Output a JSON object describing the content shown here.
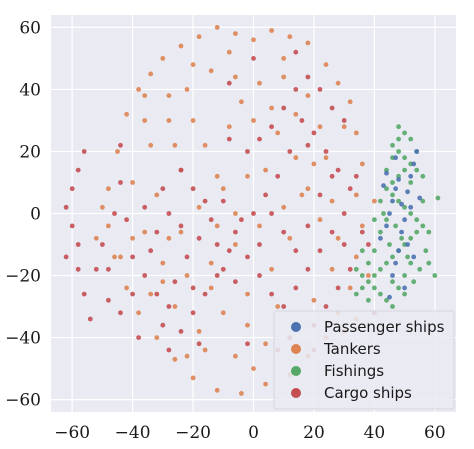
{
  "chart_data": {
    "type": "scatter",
    "title": "",
    "xlabel": "",
    "ylabel": "",
    "xlim": [
      -67,
      67
    ],
    "ylim": [
      -64,
      64
    ],
    "x_ticks": [
      -60,
      -40,
      -20,
      0,
      20,
      40,
      60
    ],
    "y_ticks": [
      -60,
      -40,
      -20,
      0,
      20,
      40,
      60
    ],
    "x_tick_labels": [
      "−60",
      "−40",
      "−20",
      "0",
      "20",
      "40",
      "60"
    ],
    "y_tick_labels": [
      "−60",
      "−40",
      "−20",
      "0",
      "20",
      "40",
      "60"
    ],
    "grid": true,
    "background": "#eaeaf2",
    "legend_position": "bottom-right",
    "series": [
      {
        "name": "Passenger ships",
        "color": "#4c72b0",
        "points": [
          [
            42,
            -8
          ],
          [
            44,
            -4
          ],
          [
            45,
            0
          ],
          [
            46,
            4
          ],
          [
            47,
            8
          ],
          [
            48,
            11
          ],
          [
            49,
            3
          ],
          [
            50,
            -2
          ],
          [
            51,
            7
          ],
          [
            52,
            12
          ],
          [
            53,
            16
          ],
          [
            54,
            20
          ],
          [
            48,
            -12
          ],
          [
            47,
            -16
          ],
          [
            46,
            -20
          ],
          [
            50,
            -24
          ],
          [
            44,
            13
          ],
          [
            51,
            -10
          ],
          [
            55,
            5
          ],
          [
            43,
            9
          ],
          [
            49,
            -6
          ],
          [
            53,
            -14
          ],
          [
            45,
            -27
          ],
          [
            52,
            2
          ],
          [
            47,
            18
          ]
        ]
      },
      {
        "name": "Tankers",
        "color": "#dd8452",
        "points": [
          [
            -45,
            20
          ],
          [
            -42,
            32
          ],
          [
            -38,
            40
          ],
          [
            -34,
            45
          ],
          [
            -30,
            50
          ],
          [
            -24,
            54
          ],
          [
            -18,
            57
          ],
          [
            -12,
            60
          ],
          [
            -6,
            58
          ],
          [
            0,
            56
          ],
          [
            6,
            59
          ],
          [
            12,
            57
          ],
          [
            18,
            55
          ],
          [
            24,
            48
          ],
          [
            28,
            42
          ],
          [
            32,
            36
          ],
          [
            34,
            26
          ],
          [
            36,
            16
          ],
          [
            34,
            6
          ],
          [
            36,
            -4
          ],
          [
            34,
            -14
          ],
          [
            32,
            -24
          ],
          [
            28,
            -32
          ],
          [
            24,
            -40
          ],
          [
            18,
            -46
          ],
          [
            12,
            -52
          ],
          [
            4,
            -55
          ],
          [
            -4,
            -58
          ],
          [
            -12,
            -57
          ],
          [
            -20,
            -53
          ],
          [
            -26,
            -47
          ],
          [
            -32,
            -40
          ],
          [
            -38,
            -32
          ],
          [
            -42,
            -24
          ],
          [
            -46,
            -14
          ],
          [
            -48,
            -4
          ],
          [
            -48,
            8
          ],
          [
            -40,
            10
          ],
          [
            -34,
            22
          ],
          [
            -28,
            30
          ],
          [
            -22,
            40
          ],
          [
            -14,
            46
          ],
          [
            -6,
            44
          ],
          [
            2,
            42
          ],
          [
            10,
            44
          ],
          [
            18,
            38
          ],
          [
            22,
            28
          ],
          [
            24,
            18
          ],
          [
            18,
            8
          ],
          [
            10,
            2
          ],
          [
            2,
            -4
          ],
          [
            -6,
            -10
          ],
          [
            -14,
            -16
          ],
          [
            -22,
            -20
          ],
          [
            -30,
            -16
          ],
          [
            -36,
            -6
          ],
          [
            -32,
            6
          ],
          [
            -24,
            14
          ],
          [
            -16,
            22
          ],
          [
            -8,
            28
          ],
          [
            0,
            30
          ],
          [
            8,
            26
          ],
          [
            14,
            18
          ],
          [
            16,
            6
          ],
          [
            12,
            -8
          ],
          [
            6,
            -18
          ],
          [
            -2,
            -26
          ],
          [
            -10,
            -32
          ],
          [
            -18,
            -38
          ],
          [
            -26,
            -30
          ],
          [
            -30,
            -22
          ],
          [
            -24,
            -6
          ],
          [
            -18,
            2
          ],
          [
            -10,
            8
          ],
          [
            -2,
            12
          ],
          [
            4,
            14
          ],
          [
            -6,
            0
          ],
          [
            -12,
            -4
          ],
          [
            -20,
            30
          ],
          [
            -28,
            38
          ],
          [
            -36,
            30
          ],
          [
            -40,
            -8
          ],
          [
            -16,
            -44
          ],
          [
            -6,
            -46
          ],
          [
            4,
            -42
          ],
          [
            14,
            -36
          ],
          [
            20,
            -28
          ],
          [
            26,
            -18
          ],
          [
            28,
            -8
          ],
          [
            26,
            4
          ],
          [
            20,
            16
          ],
          [
            30,
            28
          ],
          [
            14,
            32
          ],
          [
            -4,
            36
          ],
          [
            -12,
            12
          ],
          [
            -28,
            -8
          ],
          [
            -2,
            -36
          ],
          [
            8,
            -30
          ],
          [
            22,
            -2
          ],
          [
            -34,
            -26
          ],
          [
            -20,
            48
          ],
          [
            -8,
            52
          ],
          [
            10,
            50
          ],
          [
            0,
            -50
          ],
          [
            -44,
            -14
          ],
          [
            38,
            -20
          ],
          [
            34,
            -34
          ],
          [
            30,
            -38
          ],
          [
            -22,
            -46
          ],
          [
            -36,
            38
          ],
          [
            40,
            4
          ],
          [
            -52,
            -8
          ],
          [
            -50,
            2
          ],
          [
            -26,
            22
          ],
          [
            -14,
            -24
          ],
          [
            6,
            34
          ]
        ]
      },
      {
        "name": "Fishings",
        "color": "#55a868",
        "points": [
          [
            34,
            -26
          ],
          [
            36,
            -24
          ],
          [
            38,
            -22
          ],
          [
            40,
            -20
          ],
          [
            42,
            -18
          ],
          [
            44,
            -16
          ],
          [
            46,
            -14
          ],
          [
            48,
            -12
          ],
          [
            50,
            -10
          ],
          [
            52,
            -8
          ],
          [
            54,
            -6
          ],
          [
            56,
            -4
          ],
          [
            54,
            -2
          ],
          [
            52,
            0
          ],
          [
            50,
            2
          ],
          [
            48,
            4
          ],
          [
            46,
            6
          ],
          [
            44,
            8
          ],
          [
            46,
            10
          ],
          [
            48,
            12
          ],
          [
            50,
            14
          ],
          [
            52,
            16
          ],
          [
            50,
            18
          ],
          [
            48,
            20
          ],
          [
            46,
            22
          ],
          [
            48,
            24
          ],
          [
            50,
            26
          ],
          [
            52,
            24
          ],
          [
            54,
            20
          ],
          [
            56,
            12
          ],
          [
            56,
            4
          ],
          [
            58,
            -6
          ],
          [
            57,
            -12
          ],
          [
            40,
            -12
          ],
          [
            42,
            -6
          ],
          [
            44,
            -2
          ],
          [
            46,
            -22
          ],
          [
            48,
            -24
          ],
          [
            50,
            -20
          ],
          [
            38,
            -16
          ],
          [
            36,
            -20
          ],
          [
            42,
            -26
          ],
          [
            44,
            -28
          ],
          [
            38,
            -28
          ],
          [
            46,
            -30
          ],
          [
            40,
            -2
          ],
          [
            42,
            4
          ],
          [
            44,
            14
          ],
          [
            46,
            18
          ],
          [
            48,
            28
          ],
          [
            52,
            10
          ],
          [
            54,
            14
          ],
          [
            36,
            -12
          ],
          [
            34,
            -18
          ],
          [
            40,
            -24
          ],
          [
            52,
            -16
          ],
          [
            50,
            -26
          ],
          [
            55,
            -18
          ],
          [
            53,
            -22
          ],
          [
            58,
            -16
          ],
          [
            60,
            -20
          ],
          [
            43,
            0
          ],
          [
            47,
            -4
          ],
          [
            49,
            -8
          ],
          [
            51,
            -14
          ],
          [
            45,
            -10
          ],
          [
            61,
            5
          ]
        ]
      },
      {
        "name": "Cargo ships",
        "color": "#c44e52",
        "points": [
          [
            -58,
            -10
          ],
          [
            -60,
            -4
          ],
          [
            -62,
            2
          ],
          [
            -60,
            8
          ],
          [
            -58,
            14
          ],
          [
            -56,
            20
          ],
          [
            -58,
            -18
          ],
          [
            -56,
            -26
          ],
          [
            -54,
            -34
          ],
          [
            -62,
            -14
          ],
          [
            -50,
            -10
          ],
          [
            -48,
            -18
          ],
          [
            -44,
            10
          ],
          [
            -42,
            -2
          ],
          [
            -40,
            -14
          ],
          [
            -36,
            -20
          ],
          [
            -32,
            -26
          ],
          [
            -28,
            -30
          ],
          [
            -26,
            -22
          ],
          [
            -22,
            -14
          ],
          [
            -18,
            -8
          ],
          [
            -14,
            -2
          ],
          [
            -10,
            4
          ],
          [
            -6,
            -6
          ],
          [
            -2,
            -14
          ],
          [
            2,
            -20
          ],
          [
            6,
            -26
          ],
          [
            10,
            -30
          ],
          [
            14,
            -24
          ],
          [
            18,
            -18
          ],
          [
            22,
            -12
          ],
          [
            26,
            -6
          ],
          [
            30,
            0
          ],
          [
            32,
            8
          ],
          [
            28,
            14
          ],
          [
            24,
            20
          ],
          [
            20,
            26
          ],
          [
            16,
            30
          ],
          [
            12,
            20
          ],
          [
            8,
            12
          ],
          [
            4,
            6
          ],
          [
            0,
            0
          ],
          [
            -4,
            -2
          ],
          [
            -8,
            -12
          ],
          [
            -12,
            -20
          ],
          [
            -16,
            -26
          ],
          [
            -20,
            -32
          ],
          [
            -24,
            -38
          ],
          [
            -28,
            -44
          ],
          [
            -24,
            14
          ],
          [
            -20,
            8
          ],
          [
            -30,
            8
          ],
          [
            -36,
            2
          ],
          [
            -32,
            -6
          ],
          [
            -28,
            0
          ],
          [
            -24,
            -4
          ],
          [
            -16,
            4
          ],
          [
            -12,
            -10
          ],
          [
            6,
            0
          ],
          [
            10,
            -6
          ],
          [
            14,
            -12
          ],
          [
            18,
            -4
          ],
          [
            22,
            6
          ],
          [
            26,
            12
          ],
          [
            30,
            -10
          ],
          [
            32,
            -18
          ],
          [
            28,
            -24
          ],
          [
            24,
            -30
          ],
          [
            20,
            -36
          ],
          [
            -40,
            -26
          ],
          [
            -44,
            -32
          ],
          [
            -38,
            -40
          ],
          [
            -10,
            -18
          ],
          [
            -6,
            -22
          ],
          [
            2,
            -10
          ],
          [
            -34,
            -12
          ],
          [
            -2,
            20
          ],
          [
            2,
            24
          ],
          [
            6,
            28
          ],
          [
            10,
            34
          ],
          [
            14,
            40
          ],
          [
            18,
            44
          ],
          [
            22,
            40
          ],
          [
            26,
            34
          ],
          [
            30,
            30
          ],
          [
            14,
            52
          ],
          [
            0,
            50
          ],
          [
            -8,
            24
          ],
          [
            -44,
            22
          ],
          [
            -48,
            -28
          ],
          [
            -52,
            -18
          ],
          [
            -46,
            0
          ],
          [
            12,
            -40
          ],
          [
            8,
            -44
          ],
          [
            -30,
            -36
          ],
          [
            -20,
            -24
          ],
          [
            34,
            12
          ],
          [
            36,
            -6
          ],
          [
            18,
            22
          ],
          [
            -8,
            42
          ],
          [
            20,
            -44
          ],
          [
            38,
            -10
          ],
          [
            40,
            -32
          ],
          [
            -18,
            -42
          ],
          [
            -2,
            -42
          ]
        ]
      }
    ]
  }
}
